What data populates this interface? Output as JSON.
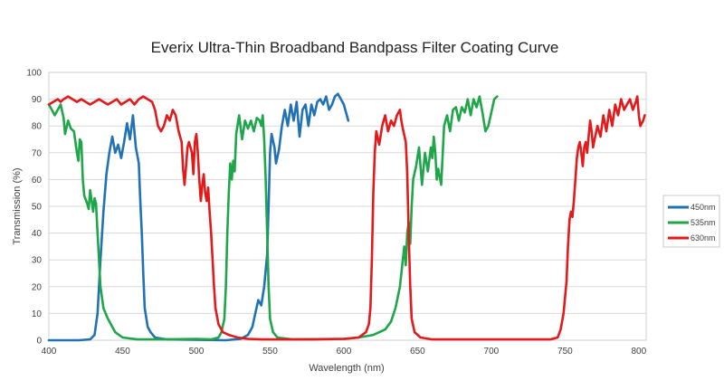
{
  "chart_data": {
    "type": "line",
    "title": "Everix Ultra-Thin Broadband Bandpass Filter Coating Curve",
    "xlabel": "Wavelength (nm)",
    "ylabel": "Transmission (%)",
    "xlim": [
      400,
      805
    ],
    "ylim": [
      0,
      100
    ],
    "xticks": [
      400,
      450,
      500,
      550,
      600,
      650,
      700,
      750,
      800
    ],
    "yticks": [
      0,
      10,
      20,
      30,
      40,
      50,
      60,
      70,
      80,
      90,
      100
    ],
    "grid": "horizontal",
    "legend_position": "right",
    "series": [
      {
        "name": "450nm",
        "color": "#2171b5",
        "points": [
          [
            400,
            0
          ],
          [
            420,
            0
          ],
          [
            428,
            0.3
          ],
          [
            431,
            2
          ],
          [
            433,
            10
          ],
          [
            435,
            30
          ],
          [
            437,
            48
          ],
          [
            439,
            62
          ],
          [
            441,
            70
          ],
          [
            443,
            76
          ],
          [
            445,
            70
          ],
          [
            447,
            73
          ],
          [
            449,
            68
          ],
          [
            451,
            74
          ],
          [
            453,
            81
          ],
          [
            455,
            75
          ],
          [
            457,
            84
          ],
          [
            459,
            72
          ],
          [
            461,
            66
          ],
          [
            462,
            52
          ],
          [
            463,
            40
          ],
          [
            464,
            25
          ],
          [
            465,
            12
          ],
          [
            467,
            5
          ],
          [
            469,
            3
          ],
          [
            472,
            1
          ],
          [
            480,
            0.3
          ],
          [
            520,
            0
          ],
          [
            530,
            0.5
          ],
          [
            535,
            2
          ],
          [
            538,
            5
          ],
          [
            540,
            10
          ],
          [
            542,
            15
          ],
          [
            544,
            13
          ],
          [
            546,
            20
          ],
          [
            548,
            32
          ],
          [
            549,
            50
          ],
          [
            550,
            70
          ],
          [
            551,
            77
          ],
          [
            553,
            72
          ],
          [
            554,
            66
          ],
          [
            556,
            71
          ],
          [
            558,
            80
          ],
          [
            560,
            86
          ],
          [
            562,
            80
          ],
          [
            564,
            88
          ],
          [
            566,
            82
          ],
          [
            568,
            89
          ],
          [
            570,
            76
          ],
          [
            572,
            86
          ],
          [
            574,
            88
          ],
          [
            576,
            80
          ],
          [
            578,
            88
          ],
          [
            580,
            84
          ],
          [
            582,
            89
          ],
          [
            584,
            90
          ],
          [
            586,
            88
          ],
          [
            588,
            91
          ],
          [
            590,
            86
          ],
          [
            592,
            88
          ],
          [
            594,
            91
          ],
          [
            596,
            92
          ],
          [
            598,
            90
          ],
          [
            600,
            88
          ],
          [
            602,
            84
          ],
          [
            603,
            82
          ]
        ]
      },
      {
        "name": "535nm",
        "color": "#1fa64a",
        "points": [
          [
            400,
            88
          ],
          [
            402,
            86
          ],
          [
            404,
            84
          ],
          [
            406,
            86
          ],
          [
            408,
            88
          ],
          [
            410,
            83
          ],
          [
            411,
            77
          ],
          [
            413,
            82
          ],
          [
            415,
            79
          ],
          [
            417,
            78
          ],
          [
            419,
            70
          ],
          [
            420,
            67
          ],
          [
            421,
            75
          ],
          [
            422,
            74
          ],
          [
            423,
            60
          ],
          [
            424,
            54
          ],
          [
            426,
            51
          ],
          [
            427,
            49
          ],
          [
            428,
            56
          ],
          [
            429,
            52
          ],
          [
            430,
            48
          ],
          [
            431,
            53
          ],
          [
            432,
            51
          ],
          [
            433,
            40
          ],
          [
            434,
            30
          ],
          [
            435,
            20
          ],
          [
            437,
            12
          ],
          [
            440,
            8
          ],
          [
            445,
            3
          ],
          [
            450,
            1
          ],
          [
            460,
            0.3
          ],
          [
            480,
            0.3
          ],
          [
            500,
            0.5
          ],
          [
            510,
            0.3
          ],
          [
            515,
            1
          ],
          [
            517,
            3
          ],
          [
            519,
            8
          ],
          [
            520,
            20
          ],
          [
            521,
            40
          ],
          [
            522,
            55
          ],
          [
            523,
            66
          ],
          [
            524,
            60
          ],
          [
            525,
            67
          ],
          [
            526,
            63
          ],
          [
            527,
            77
          ],
          [
            529,
            84
          ],
          [
            531,
            75
          ],
          [
            533,
            82
          ],
          [
            535,
            79
          ],
          [
            537,
            82
          ],
          [
            539,
            78
          ],
          [
            541,
            83
          ],
          [
            543,
            82
          ],
          [
            544,
            80
          ],
          [
            545,
            84
          ],
          [
            546,
            75
          ],
          [
            547,
            60
          ],
          [
            548,
            40
          ],
          [
            549,
            20
          ],
          [
            550,
            8
          ],
          [
            552,
            3
          ],
          [
            555,
            1
          ],
          [
            565,
            0.3
          ],
          [
            600,
            0.5
          ],
          [
            610,
            1
          ],
          [
            620,
            2
          ],
          [
            628,
            4
          ],
          [
            632,
            7
          ],
          [
            635,
            12
          ],
          [
            638,
            20
          ],
          [
            640,
            30
          ],
          [
            641,
            35
          ],
          [
            642,
            28
          ],
          [
            643,
            40
          ],
          [
            644,
            44
          ],
          [
            645,
            36
          ],
          [
            646,
            50
          ],
          [
            647,
            60
          ],
          [
            649,
            65
          ],
          [
            651,
            72
          ],
          [
            653,
            58
          ],
          [
            655,
            70
          ],
          [
            657,
            63
          ],
          [
            659,
            72
          ],
          [
            660,
            68
          ],
          [
            661,
            76
          ],
          [
            662,
            70
          ],
          [
            663,
            60
          ],
          [
            664,
            64
          ],
          [
            666,
            58
          ],
          [
            668,
            80
          ],
          [
            670,
            84
          ],
          [
            672,
            78
          ],
          [
            674,
            86
          ],
          [
            676,
            87
          ],
          [
            678,
            82
          ],
          [
            680,
            87
          ],
          [
            682,
            85
          ],
          [
            684,
            90
          ],
          [
            686,
            84
          ],
          [
            688,
            90
          ],
          [
            690,
            87
          ],
          [
            692,
            91
          ],
          [
            694,
            85
          ],
          [
            696,
            78
          ],
          [
            698,
            80
          ],
          [
            700,
            85
          ],
          [
            702,
            90
          ],
          [
            704,
            91
          ]
        ]
      },
      {
        "name": "630nm",
        "color": "#e31a1c",
        "points": [
          [
            400,
            88
          ],
          [
            403,
            89
          ],
          [
            406,
            90
          ],
          [
            408,
            89
          ],
          [
            410,
            90
          ],
          [
            413,
            91
          ],
          [
            416,
            90
          ],
          [
            419,
            89
          ],
          [
            422,
            90
          ],
          [
            425,
            89
          ],
          [
            428,
            88
          ],
          [
            431,
            89
          ],
          [
            434,
            90
          ],
          [
            437,
            89
          ],
          [
            440,
            88
          ],
          [
            443,
            89
          ],
          [
            446,
            90
          ],
          [
            449,
            88
          ],
          [
            452,
            89
          ],
          [
            455,
            90
          ],
          [
            458,
            88
          ],
          [
            461,
            90
          ],
          [
            464,
            91
          ],
          [
            467,
            90
          ],
          [
            470,
            89
          ],
          [
            472,
            86
          ],
          [
            474,
            80
          ],
          [
            476,
            78
          ],
          [
            478,
            80
          ],
          [
            480,
            84
          ],
          [
            482,
            82
          ],
          [
            484,
            86
          ],
          [
            486,
            84
          ],
          [
            488,
            78
          ],
          [
            490,
            74
          ],
          [
            491,
            64
          ],
          [
            492,
            58
          ],
          [
            493,
            65
          ],
          [
            494,
            72
          ],
          [
            495,
            74
          ],
          [
            497,
            70
          ],
          [
            498,
            62
          ],
          [
            499,
            74
          ],
          [
            500,
            77
          ],
          [
            501,
            70
          ],
          [
            502,
            60
          ],
          [
            503,
            52
          ],
          [
            504,
            58
          ],
          [
            505,
            62
          ],
          [
            506,
            55
          ],
          [
            507,
            52
          ],
          [
            508,
            57
          ],
          [
            509,
            48
          ],
          [
            510,
            40
          ],
          [
            511,
            30
          ],
          [
            512,
            20
          ],
          [
            513,
            12
          ],
          [
            515,
            6
          ],
          [
            518,
            3
          ],
          [
            522,
            2
          ],
          [
            528,
            1
          ],
          [
            535,
            0.5
          ],
          [
            545,
            0.3
          ],
          [
            580,
            0.3
          ],
          [
            600,
            0.5
          ],
          [
            610,
            1
          ],
          [
            615,
            3
          ],
          [
            617,
            6
          ],
          [
            618,
            12
          ],
          [
            619,
            30
          ],
          [
            620,
            55
          ],
          [
            621,
            70
          ],
          [
            622,
            78
          ],
          [
            624,
            73
          ],
          [
            626,
            80
          ],
          [
            628,
            84
          ],
          [
            630,
            78
          ],
          [
            632,
            82
          ],
          [
            634,
            80
          ],
          [
            636,
            84
          ],
          [
            638,
            86
          ],
          [
            639,
            82
          ],
          [
            640,
            79
          ],
          [
            642,
            74
          ],
          [
            643,
            62
          ],
          [
            644,
            40
          ],
          [
            645,
            20
          ],
          [
            646,
            8
          ],
          [
            648,
            3
          ],
          [
            652,
            1
          ],
          [
            660,
            0.3
          ],
          [
            700,
            0.3
          ],
          [
            740,
            0.3
          ],
          [
            745,
            1
          ],
          [
            747,
            4
          ],
          [
            749,
            10
          ],
          [
            751,
            22
          ],
          [
            752,
            35
          ],
          [
            753,
            45
          ],
          [
            754,
            48
          ],
          [
            755,
            46
          ],
          [
            756,
            52
          ],
          [
            757,
            60
          ],
          [
            758,
            68
          ],
          [
            759,
            72
          ],
          [
            760,
            74
          ],
          [
            761,
            70
          ],
          [
            762,
            65
          ],
          [
            763,
            72
          ],
          [
            764,
            74
          ],
          [
            765,
            70
          ],
          [
            766,
            76
          ],
          [
            767,
            82
          ],
          [
            768,
            78
          ],
          [
            769,
            72
          ],
          [
            770,
            75
          ],
          [
            772,
            80
          ],
          [
            774,
            76
          ],
          [
            776,
            84
          ],
          [
            778,
            78
          ],
          [
            780,
            86
          ],
          [
            782,
            80
          ],
          [
            784,
            88
          ],
          [
            786,
            84
          ],
          [
            788,
            90
          ],
          [
            790,
            86
          ],
          [
            792,
            88
          ],
          [
            794,
            90
          ],
          [
            796,
            86
          ],
          [
            798,
            89
          ],
          [
            799,
            91
          ],
          [
            800,
            84
          ],
          [
            801,
            80
          ],
          [
            803,
            82
          ],
          [
            804,
            84
          ]
        ]
      }
    ]
  }
}
